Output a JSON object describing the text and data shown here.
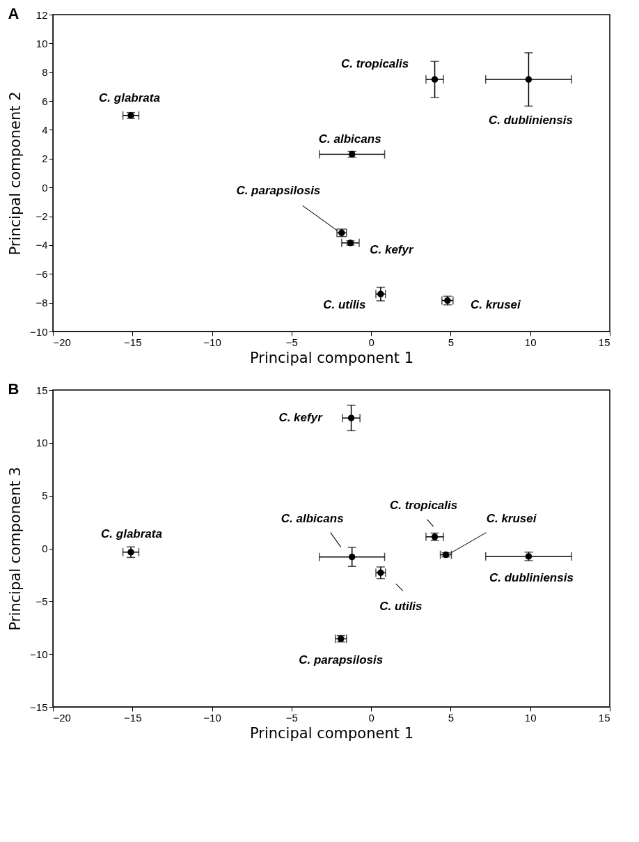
{
  "chart_data": [
    {
      "type": "scatter",
      "title": "A",
      "xlabel": "Principal component 1",
      "ylabel": "Principal component 2",
      "marker": "circle",
      "grid": false,
      "xlim": [
        -20,
        15
      ],
      "xticks": [
        -20,
        -15,
        -10,
        -5,
        0,
        5,
        10,
        15
      ],
      "ylim": [
        -10,
        12
      ],
      "yticks": [
        -10,
        -8,
        -6,
        -4,
        -2,
        0,
        2,
        4,
        6,
        8,
        10,
        12
      ],
      "series": [
        {
          "color": "#000000",
          "x": [
            -15.1,
            4.0,
            9.9,
            -1.2,
            -1.85,
            -1.3,
            0.6,
            4.8
          ],
          "values": [
            5.0,
            7.5,
            7.5,
            2.3,
            -3.15,
            -3.85,
            -7.4,
            -7.85
          ],
          "errors": [
            0.2,
            1.25,
            1.85,
            0.2,
            0.26,
            0.15,
            0.47,
            0.3
          ],
          "xerrors": [
            0.5,
            0.55,
            2.7,
            2.05,
            0.3,
            0.55,
            0.3,
            0.35
          ]
        }
      ],
      "annotations": [
        {
          "text": "C. glabrata",
          "x": -15.1,
          "y": 5.0
        },
        {
          "text": "C. tropicalis",
          "x": 4.0,
          "y": 7.5
        },
        {
          "text": "C. dubliniensis",
          "x": 9.9,
          "y": 5.65
        },
        {
          "text": "C. albicans",
          "x": -1.2,
          "y": 2.3
        },
        {
          "text": "C. parapsilosis",
          "x": -1.85,
          "y": -3.15
        },
        {
          "text": "C. kefyr",
          "x": -1.3,
          "y": -3.85
        },
        {
          "text": "C. utilis",
          "x": 0.6,
          "y": -7.4
        },
        {
          "text": "C. krusei",
          "x": 4.8,
          "y": -7.85
        }
      ]
    },
    {
      "type": "scatter",
      "title": "B",
      "xlabel": "Principal component 1",
      "ylabel": "Principal component 3",
      "marker": "circle",
      "grid": false,
      "xlim": [
        -20,
        15
      ],
      "xticks": [
        -20,
        -15,
        -10,
        -5,
        0,
        5,
        10,
        15
      ],
      "ylim": [
        -15,
        15
      ],
      "yticks": [
        -15,
        -10,
        -5,
        0,
        5,
        10,
        15
      ],
      "series": [
        {
          "color": "#000000",
          "x": [
            -1.25,
            -15.1,
            -1.2,
            0.6,
            4.0,
            4.7,
            9.9,
            -1.9
          ],
          "values": [
            12.35,
            -0.35,
            -0.8,
            -2.3,
            1.1,
            -0.6,
            -0.75,
            -8.55
          ],
          "errors": [
            1.2,
            0.5,
            0.9,
            0.55,
            0.35,
            0.2,
            0.4,
            0.3
          ],
          "xerrors": [
            0.55,
            0.5,
            2.05,
            0.3,
            0.55,
            0.35,
            2.7,
            0.35
          ]
        }
      ],
      "annotations": [
        {
          "text": "C. kefyr",
          "x": -1.25,
          "y": 12.35
        },
        {
          "text": "C. glabrata",
          "x": -15.1,
          "y": -0.35
        },
        {
          "text": "C. albicans",
          "x": -1.2,
          "y": -0.8
        },
        {
          "text": "C. utilis",
          "x": 0.6,
          "y": -2.3
        },
        {
          "text": "C. tropicalis",
          "x": 4.0,
          "y": 1.1
        },
        {
          "text": "C. krusei",
          "x": 4.7,
          "y": -0.6
        },
        {
          "text": "C. dubliniensis",
          "x": 9.9,
          "y": -0.75
        },
        {
          "text": "C. parapsilosis",
          "x": -1.9,
          "y": -8.55
        }
      ]
    }
  ]
}
